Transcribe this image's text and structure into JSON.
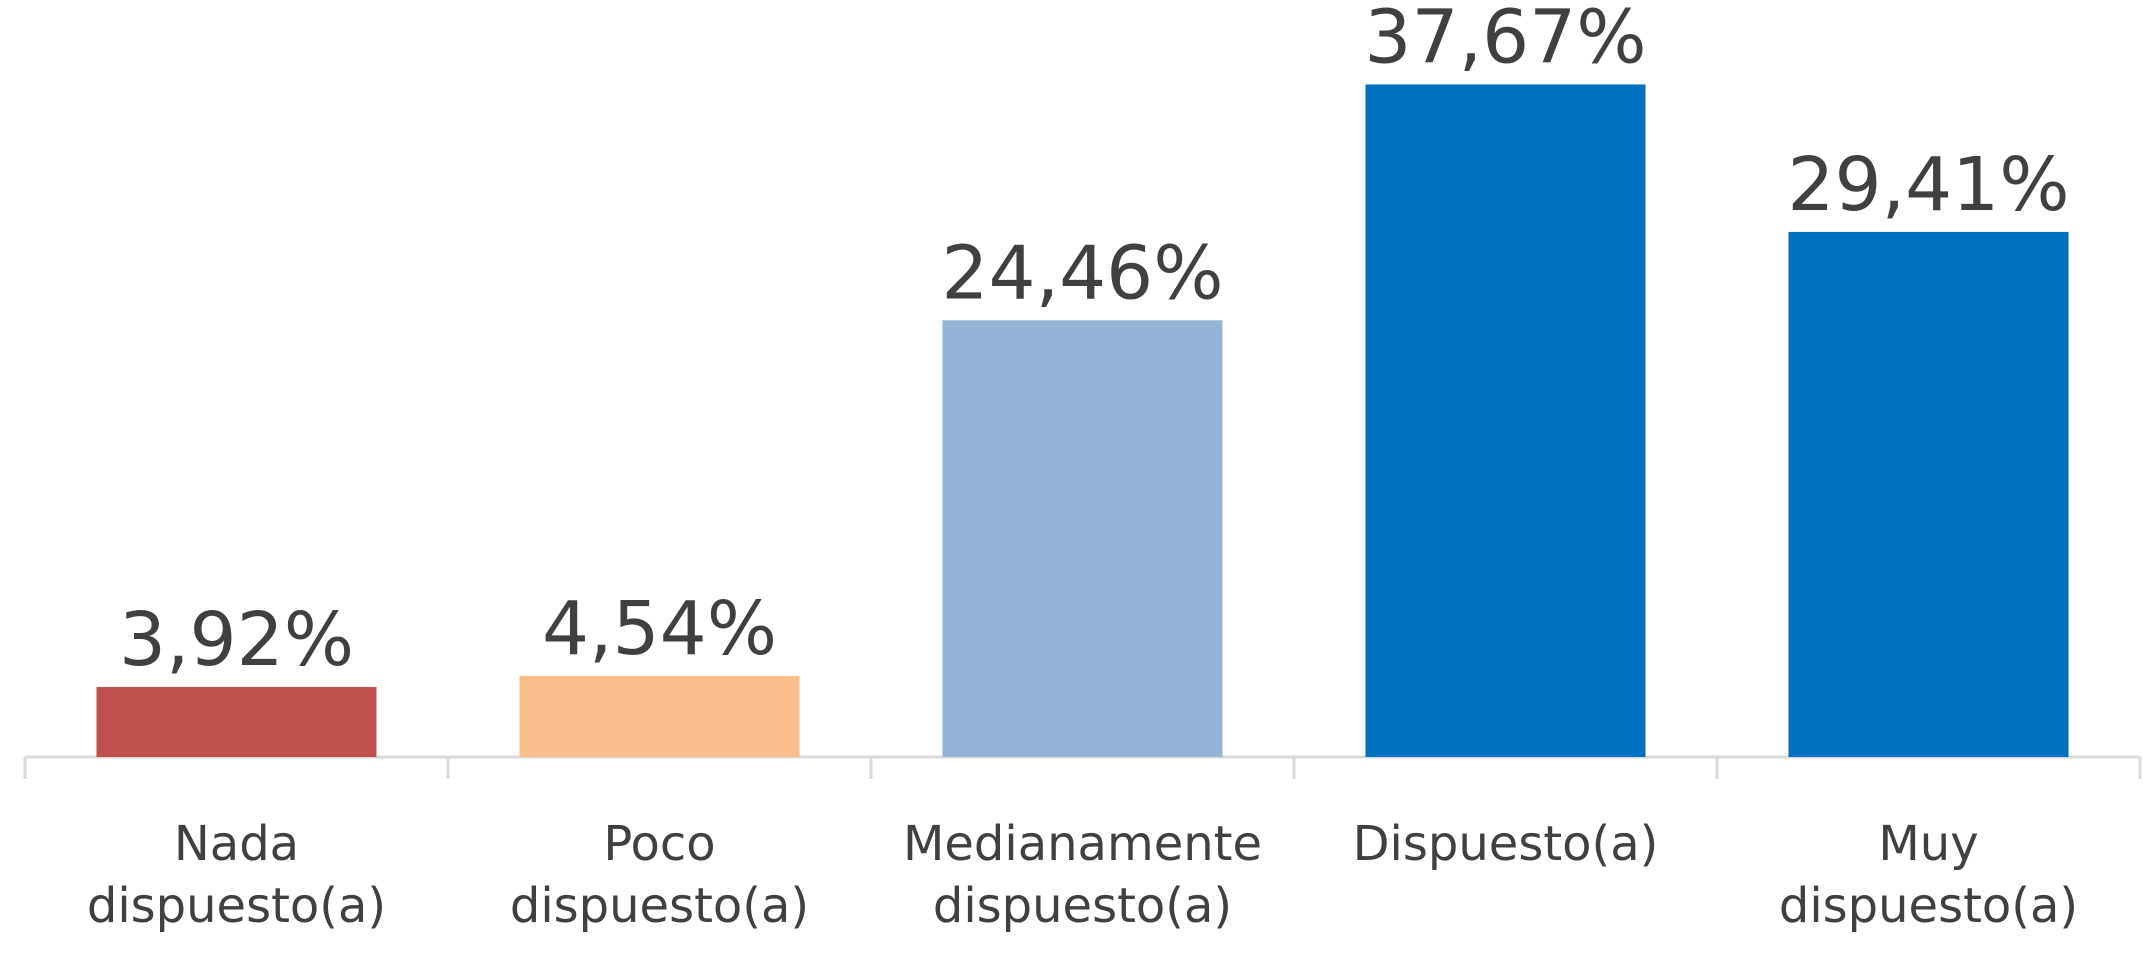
{
  "chart_data": {
    "type": "bar",
    "categories": [
      "Nada dispuesto(a)",
      "Poco dispuesto(a)",
      "Medianamente dispuesto(a)",
      "Dispuesto(a)",
      "Muy dispuesto(a)"
    ],
    "values": [
      3.92,
      4.54,
      24.46,
      37.67,
      29.41
    ],
    "value_labels": [
      "3,92%",
      "4,54%",
      "24,46%",
      "37,67%",
      "29,41%"
    ],
    "colors": [
      "#c0504d",
      "#f9be8c",
      "#95b3d7",
      "#0070c0",
      "#0070c0"
    ],
    "ylim": [
      0,
      42.4
    ]
  }
}
